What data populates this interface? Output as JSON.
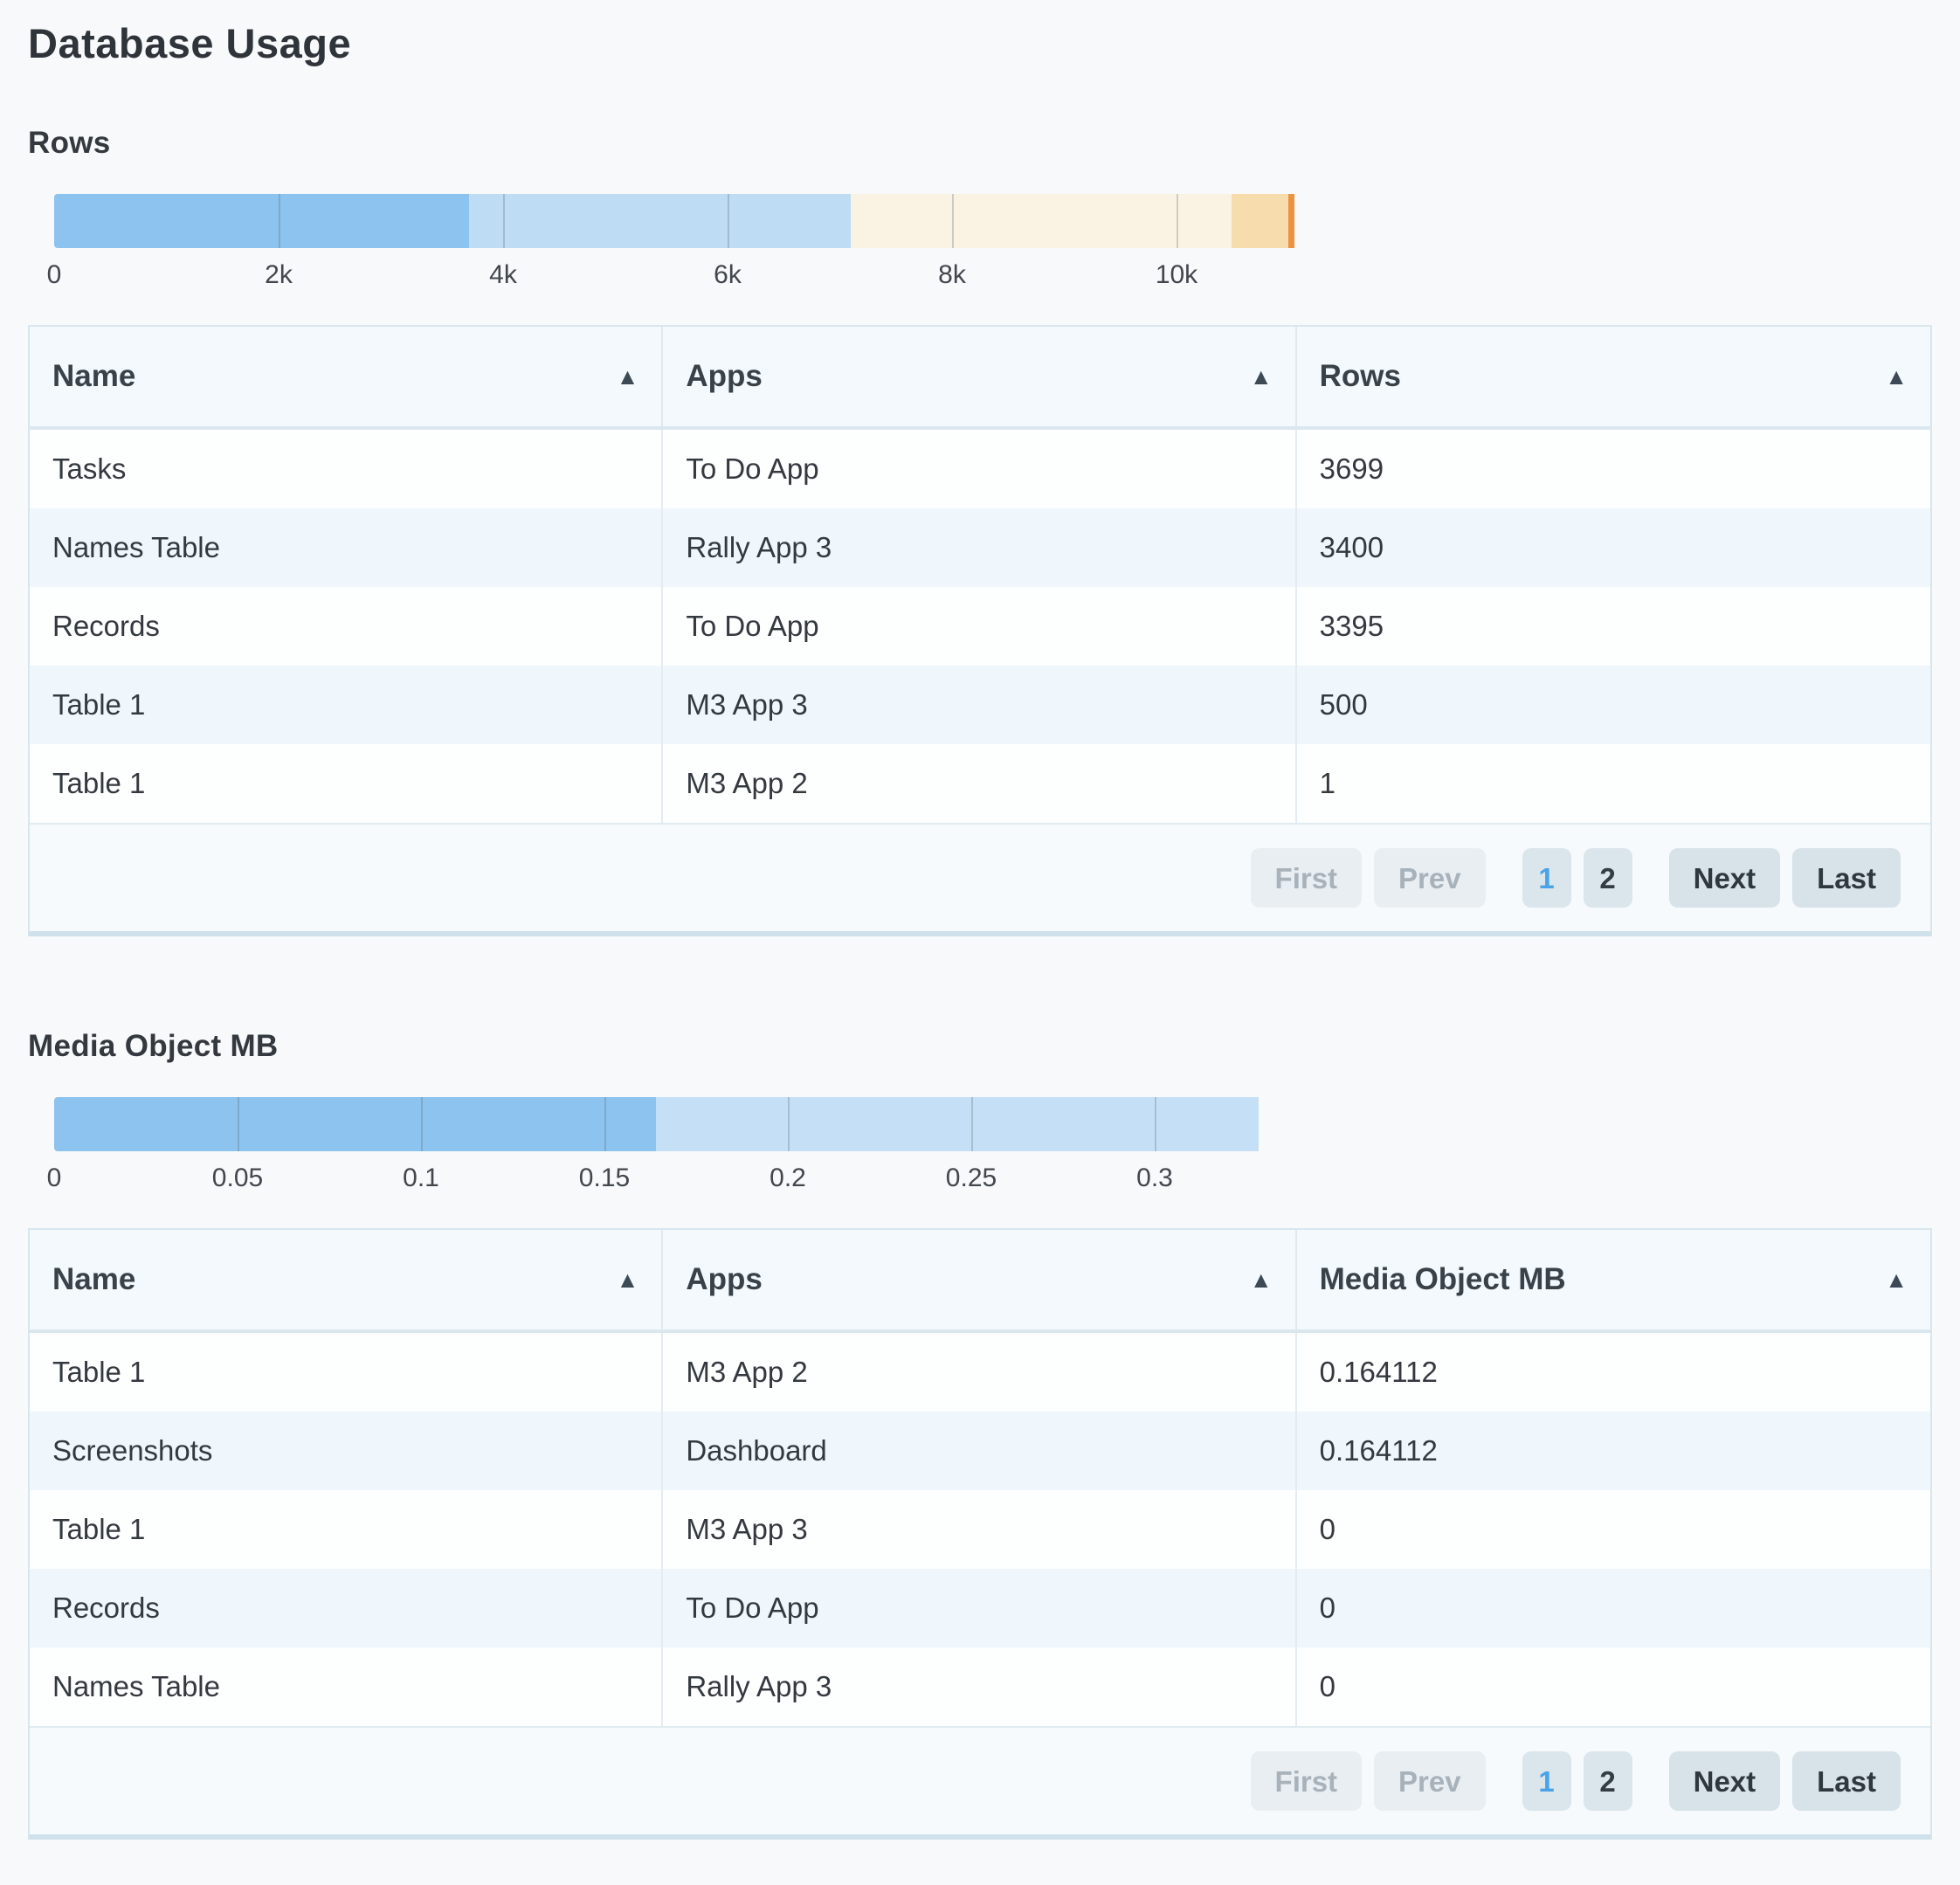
{
  "page": {
    "title": "Database Usage",
    "background": "#f8f9fa"
  },
  "colors": {
    "accent_blue": "#48a3e8",
    "bar_medium_blue": "#8cc3ef",
    "bar_light_blue": "#bedcf4",
    "bar_cream": "#faf3e4",
    "bar_tan": "#f7dcae",
    "bar_orange": "#ec9240",
    "media_light_blue": "#c5e0f6"
  },
  "sections": [
    {
      "heading": "Rows",
      "table": {
        "columns": [
          "Name",
          "Apps",
          "Rows"
        ],
        "sort_icon": "ascending-triangle",
        "rows": [
          [
            "Tasks",
            "To Do App",
            "3699"
          ],
          [
            "Names Table",
            "Rally App 3",
            "3400"
          ],
          [
            "Records",
            "To Do App",
            "3395"
          ],
          [
            "Table 1",
            "M3 App 3",
            "500"
          ],
          [
            "Table 1",
            "M3 App 2",
            "1"
          ]
        ],
        "pagination": {
          "buttons": [
            {
              "label": "First",
              "kind": "nav",
              "enabled": false
            },
            {
              "label": "Prev",
              "kind": "nav",
              "enabled": false
            },
            {
              "label": "1",
              "kind": "page",
              "active": true
            },
            {
              "label": "2",
              "kind": "page",
              "active": false
            },
            {
              "label": "Next",
              "kind": "nav",
              "enabled": true
            },
            {
              "label": "Last",
              "kind": "nav",
              "enabled": true
            }
          ]
        }
      }
    },
    {
      "heading": "Media Object MB",
      "table": {
        "columns": [
          "Name",
          "Apps",
          "Media Object MB"
        ],
        "sort_icon": "ascending-triangle",
        "rows": [
          [
            "Table 1",
            "M3 App 2",
            "0.164112"
          ],
          [
            "Screenshots",
            "Dashboard",
            "0.164112"
          ],
          [
            "Table 1",
            "M3 App 3",
            "0"
          ],
          [
            "Records",
            "To Do App",
            "0"
          ],
          [
            "Names Table",
            "Rally App 3",
            "0"
          ]
        ],
        "pagination": {
          "buttons": [
            {
              "label": "First",
              "kind": "nav",
              "enabled": false
            },
            {
              "label": "Prev",
              "kind": "nav",
              "enabled": false
            },
            {
              "label": "1",
              "kind": "page",
              "active": true
            },
            {
              "label": "2",
              "kind": "page",
              "active": false
            },
            {
              "label": "Next",
              "kind": "nav",
              "enabled": true
            },
            {
              "label": "Last",
              "kind": "nav",
              "enabled": true
            }
          ]
        }
      }
    }
  ],
  "chart_data": [
    {
      "type": "bar",
      "orientation": "horizontal-stacked",
      "title": "Rows",
      "segments": [
        {
          "name": "Tasks",
          "app": "To Do App",
          "value": 3699,
          "color": "#8cc3ef"
        },
        {
          "name": "Names Table",
          "app": "Rally App 3",
          "value": 3400,
          "color": "#bedcf4"
        },
        {
          "name": "Records",
          "app": "To Do App",
          "value": 3395,
          "color": "#faf3e4"
        },
        {
          "name": "Table 1",
          "app": "M3 App 3",
          "value": 500,
          "color": "#f7dcae"
        },
        {
          "name": "Table 1",
          "app": "M3 App 2",
          "value": 1,
          "color": "#ec9240"
        }
      ],
      "total": 10995,
      "xlim": [
        0,
        11000
      ],
      "ticks": [
        "0",
        "2k",
        "4k",
        "6k",
        "8k",
        "10k"
      ],
      "tick_values": [
        0,
        2000,
        4000,
        6000,
        8000,
        10000
      ],
      "grid": true,
      "legend": false
    },
    {
      "type": "bar",
      "orientation": "horizontal-stacked",
      "title": "Media Object MB",
      "segments": [
        {
          "name": "Table 1",
          "app": "M3 App 2",
          "value": 0.164112,
          "color": "#8cc3ef"
        },
        {
          "name": "Screenshots",
          "app": "Dashboard",
          "value": 0.164112,
          "color": "#c5e0f6"
        }
      ],
      "total": 0.328224,
      "xlim": [
        0,
        0.33
      ],
      "ticks": [
        "0",
        "0.05",
        "0.1",
        "0.15",
        "0.2",
        "0.25",
        "0.3"
      ],
      "tick_values": [
        0,
        0.05,
        0.1,
        0.15,
        0.2,
        0.25,
        0.3
      ],
      "grid": true,
      "legend": false
    }
  ]
}
